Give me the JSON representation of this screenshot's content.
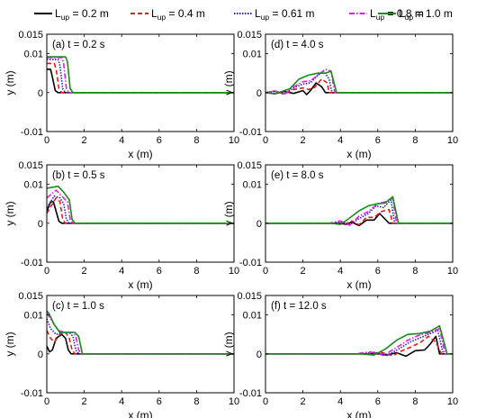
{
  "legend": {
    "series_prefix": "L",
    "series_subscript": "up"
  },
  "chart_data": {
    "type": "line",
    "xlabel": "x (m)",
    "ylabel": "y (m)",
    "xlim": [
      0,
      10
    ],
    "ylim": [
      -0.01,
      0.015
    ],
    "xticks": [
      0,
      2,
      4,
      6,
      8,
      10
    ],
    "yticks": [
      -0.01,
      0,
      0.01,
      0.015
    ],
    "ytick_labels": [
      "-0.01",
      "0",
      "0.01",
      "0.015"
    ],
    "legend_position": "top",
    "grid": false,
    "series": [
      {
        "name": "L_up = 0.2 m",
        "legend_value": " = 0.2 m",
        "L_up": 0.2,
        "color": "#000000",
        "dash": "solid"
      },
      {
        "name": "L_up = 0.4 m",
        "legend_value": " = 0.4 m",
        "L_up": 0.4,
        "color": "#e41a1c",
        "dash": "dashed"
      },
      {
        "name": "L_up = 0.61 m",
        "legend_value": " = 0.61 m",
        "L_up": 0.61,
        "color": "#1f1fc8",
        "dash": "dotted"
      },
      {
        "name": "L_up = 0.8 m",
        "legend_value": " = 0.8 m",
        "L_up": 0.8,
        "color": "#e020e0",
        "dash": "dashdot"
      },
      {
        "name": "L_up = 1.0 m",
        "legend_value": " = 1.0 m",
        "L_up": 1.0,
        "color": "#1a8a1a",
        "dash": "solid"
      }
    ],
    "panels": [
      {
        "id": "a",
        "label": "(a) t = 0.2 s",
        "t": 0.2,
        "curves": [
          {
            "x": [
              0,
              0.2,
              0.3,
              0.45,
              0.6,
              10
            ],
            "y": [
              0.006,
              0.006,
              0.004,
              0.0005,
              0,
              0
            ]
          },
          {
            "x": [
              0,
              0.4,
              0.5,
              0.65,
              0.8,
              10
            ],
            "y": [
              0.0075,
              0.0075,
              0.006,
              0.001,
              0,
              0
            ]
          },
          {
            "x": [
              0,
              0.6,
              0.7,
              0.85,
              1.0,
              10
            ],
            "y": [
              0.0085,
              0.0085,
              0.007,
              0.001,
              0,
              0
            ]
          },
          {
            "x": [
              0,
              0.8,
              0.9,
              1.05,
              1.2,
              10
            ],
            "y": [
              0.009,
              0.009,
              0.0075,
              0.001,
              0,
              0
            ]
          },
          {
            "x": [
              0,
              1.0,
              1.1,
              1.25,
              1.4,
              10
            ],
            "y": [
              0.0092,
              0.0092,
              0.008,
              0.001,
              0,
              0
            ]
          }
        ]
      },
      {
        "id": "b",
        "label": "(b) t = 0.5 s",
        "t": 0.5,
        "curves": [
          {
            "x": [
              0,
              0.2,
              0.35,
              0.5,
              0.65,
              0.8,
              10
            ],
            "y": [
              0.003,
              0.0055,
              0.0055,
              0.003,
              0.0005,
              0,
              0
            ]
          },
          {
            "x": [
              0,
              0.3,
              0.5,
              0.7,
              0.85,
              1.0,
              10
            ],
            "y": [
              0.0025,
              0.005,
              0.0065,
              0.0055,
              0.001,
              0,
              0
            ]
          },
          {
            "x": [
              0,
              0.4,
              0.7,
              0.9,
              1.05,
              1.2,
              10
            ],
            "y": [
              0.004,
              0.007,
              0.0065,
              0.005,
              0.001,
              0,
              0
            ]
          },
          {
            "x": [
              0,
              0.5,
              0.8,
              1.1,
              1.25,
              1.4,
              10
            ],
            "y": [
              0.0065,
              0.0085,
              0.007,
              0.0055,
              0.001,
              0,
              0
            ]
          },
          {
            "x": [
              0,
              0.6,
              0.9,
              1.2,
              1.35,
              1.5,
              10
            ],
            "y": [
              0.009,
              0.0095,
              0.008,
              0.006,
              0.001,
              0,
              0
            ]
          }
        ]
      },
      {
        "id": "c",
        "label": "(c) t = 1.0 s",
        "t": 1.0,
        "curves": [
          {
            "x": [
              0,
              0.15,
              0.3,
              0.5,
              0.8,
              1.0,
              1.15,
              1.3,
              10
            ],
            "y": [
              0.002,
              0.0005,
              0.001,
              0.004,
              0.005,
              0.004,
              0.001,
              0,
              0
            ]
          },
          {
            "x": [
              0,
              0.2,
              0.4,
              0.7,
              1.0,
              1.2,
              1.35,
              1.5,
              10
            ],
            "y": [
              0.006,
              0.004,
              0.003,
              0.005,
              0.0055,
              0.004,
              0.001,
              0,
              0
            ]
          },
          {
            "x": [
              0,
              0.2,
              0.5,
              0.9,
              1.2,
              1.4,
              1.55,
              1.7,
              10
            ],
            "y": [
              0.009,
              0.0065,
              0.005,
              0.0055,
              0.0055,
              0.0045,
              0.001,
              0,
              0
            ]
          },
          {
            "x": [
              0,
              0.2,
              0.6,
              1.0,
              1.4,
              1.55,
              1.7,
              1.85,
              10
            ],
            "y": [
              0.0105,
              0.009,
              0.006,
              0.0055,
              0.0055,
              0.0045,
              0.001,
              0,
              0
            ]
          },
          {
            "x": [
              0,
              0.1,
              0.4,
              0.7,
              1.1,
              1.5,
              1.7,
              1.9,
              10
            ],
            "y": [
              0.011,
              0.0105,
              0.0075,
              0.0055,
              0.0055,
              0.0055,
              0.0045,
              0,
              0
            ]
          }
        ]
      },
      {
        "id": "d",
        "label": "(d) t = 4.0 s",
        "t": 4.0,
        "curves": [
          {
            "x": [
              0,
              0.5,
              1.0,
              1.5,
              2.0,
              2.2,
              2.4,
              2.7,
              3.0,
              3.2,
              10
            ],
            "y": [
              0,
              -0.0003,
              0.0003,
              -0.0002,
              0.0005,
              -0.0005,
              0.0005,
              0.0025,
              0.0015,
              0,
              0
            ]
          },
          {
            "x": [
              0,
              0.5,
              1.0,
              1.5,
              2.0,
              2.3,
              2.6,
              3.0,
              3.3,
              3.4,
              10
            ],
            "y": [
              0,
              0.0004,
              -0.0004,
              0.0008,
              0.0012,
              0.0008,
              0.0012,
              0.0035,
              0.0025,
              0,
              0
            ]
          },
          {
            "x": [
              0,
              0.5,
              1.0,
              1.5,
              2.0,
              2.4,
              2.8,
              3.1,
              3.4,
              3.55,
              10
            ],
            "y": [
              0,
              0.0003,
              -0.0003,
              0.0012,
              0.0022,
              0.0025,
              0.0045,
              0.0055,
              0.0035,
              0,
              0
            ]
          },
          {
            "x": [
              0,
              0.5,
              1.0,
              1.5,
              2.0,
              2.4,
              2.8,
              3.2,
              3.5,
              3.7,
              10
            ],
            "y": [
              0,
              0.0005,
              -0.0005,
              0.0015,
              0.0028,
              0.003,
              0.0045,
              0.006,
              0.0055,
              0,
              0
            ]
          },
          {
            "x": [
              0,
              0.5,
              1.0,
              1.3,
              1.8,
              2.3,
              2.8,
              3.2,
              3.5,
              3.8,
              10
            ],
            "y": [
              0,
              -0.0003,
              0.0005,
              0.001,
              0.0035,
              0.0045,
              0.005,
              0.005,
              0.0055,
              0,
              0
            ]
          }
        ]
      },
      {
        "id": "e",
        "label": "(e) t = 8.0 s",
        "t": 8.0,
        "curves": [
          {
            "x": [
              0,
              4.0,
              4.3,
              4.6,
              5.0,
              5.4,
              5.8,
              6.1,
              6.4,
              6.6,
              10
            ],
            "y": [
              0,
              0,
              -0.0003,
              0.0003,
              -0.0006,
              0.0008,
              0.0008,
              0.0025,
              0.001,
              0,
              0
            ]
          },
          {
            "x": [
              0,
              3.8,
              4.2,
              4.6,
              5.0,
              5.4,
              5.8,
              6.2,
              6.6,
              6.8,
              10
            ],
            "y": [
              0,
              0,
              -0.0004,
              0.0006,
              -0.0004,
              0.0015,
              0.0015,
              0.003,
              0.0035,
              0,
              0
            ]
          },
          {
            "x": [
              0,
              3.6,
              4.0,
              4.5,
              5.0,
              5.5,
              5.9,
              6.3,
              6.7,
              6.9,
              10
            ],
            "y": [
              0,
              0,
              0.0004,
              -0.0004,
              0.0012,
              0.0025,
              0.0045,
              0.004,
              0.006,
              0,
              0
            ]
          },
          {
            "x": [
              0,
              3.4,
              4.0,
              4.5,
              5.0,
              5.5,
              6.0,
              6.4,
              6.8,
              7.0,
              10
            ],
            "y": [
              0,
              0,
              0.0006,
              -0.0005,
              0.0018,
              0.003,
              0.005,
              0.0055,
              0.0065,
              0,
              0
            ]
          },
          {
            "x": [
              0,
              3.5,
              4.0,
              4.4,
              5.0,
              5.5,
              6.0,
              6.4,
              6.8,
              7.1,
              10
            ],
            "y": [
              0,
              0,
              -0.0003,
              0.001,
              0.0032,
              0.0045,
              0.005,
              0.0052,
              0.0068,
              0,
              0
            ]
          }
        ]
      },
      {
        "id": "f",
        "label": "(f) t = 12.0 s",
        "t": 12.0,
        "curves": [
          {
            "x": [
              0,
              6.0,
              6.5,
              7.0,
              7.5,
              8.0,
              8.5,
              8.8,
              9.1,
              9.3,
              10
            ],
            "y": [
              0,
              0,
              -0.0003,
              0.0003,
              -0.0006,
              0.0008,
              0.001,
              0.0025,
              0.0045,
              0,
              0
            ]
          },
          {
            "x": [
              0,
              5.5,
              6.2,
              6.8,
              7.3,
              7.8,
              8.3,
              8.7,
              9.1,
              9.4,
              10
            ],
            "y": [
              0,
              0,
              0.0004,
              -0.0005,
              0.0008,
              0.0018,
              0.003,
              0.0045,
              0.003,
              0,
              0
            ]
          },
          {
            "x": [
              0,
              5.0,
              5.8,
              6.5,
              7.1,
              7.7,
              8.2,
              8.7,
              9.2,
              9.5,
              10
            ],
            "y": [
              0,
              0,
              0.0004,
              -0.0004,
              0.0012,
              0.003,
              0.004,
              0.005,
              0.006,
              0,
              0
            ]
          },
          {
            "x": [
              0,
              4.8,
              5.6,
              6.3,
              7.0,
              7.6,
              8.2,
              8.8,
              9.3,
              9.6,
              10
            ],
            "y": [
              0,
              0,
              0.0005,
              -0.0004,
              0.0016,
              0.0035,
              0.0048,
              0.0055,
              0.0065,
              0,
              0
            ]
          },
          {
            "x": [
              0,
              5.0,
              5.8,
              6.4,
              7.0,
              7.6,
              8.2,
              8.8,
              9.3,
              9.7,
              10
            ],
            "y": [
              0,
              0,
              -0.0003,
              0.0012,
              0.0035,
              0.005,
              0.0052,
              0.0058,
              0.0072,
              0,
              0
            ]
          }
        ]
      }
    ]
  }
}
